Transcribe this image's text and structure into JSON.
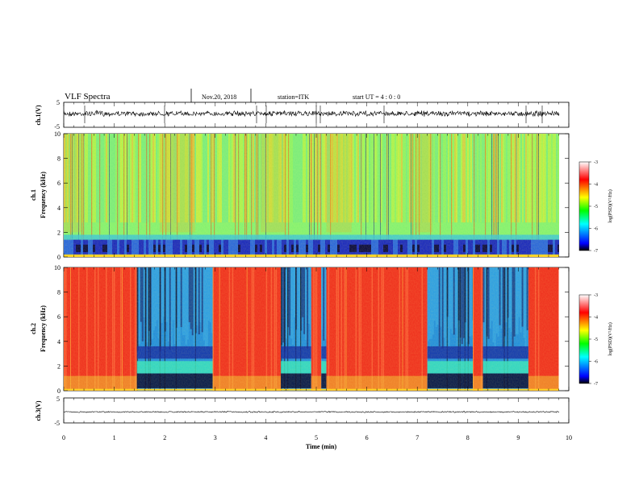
{
  "header": {
    "title": "VLF Spectra",
    "date": "Nov.20, 2018",
    "station": "station=ITK",
    "start_ut": "start  UT  =   4 : 0  : 0"
  },
  "colors": {
    "low": "#000000",
    "mid_low": "#0000ff",
    "mid": "#00ff80",
    "mid_high": "#ffff00",
    "high": "#ff0000",
    "top": "#ffffff"
  },
  "chart_data": [
    {
      "type": "line",
      "name": "ch1-waveform",
      "ylabel": "ch.1(V)",
      "ylim": [
        -5,
        5
      ],
      "y_ticks": [
        "5",
        "-5"
      ],
      "x": [
        0,
        10
      ],
      "baseline": 0.5,
      "amplitude": 0.6
    },
    {
      "type": "heatmap",
      "name": "ch1-spectrogram",
      "ylabel": "ch.1\nFrequency (kHz)",
      "xlim": [
        0,
        10
      ],
      "ylim": [
        0,
        10
      ],
      "y_ticks": [
        "0",
        "2",
        "4",
        "6",
        "8",
        "10"
      ],
      "colorbar": {
        "label": "log(PSD)(V²/Hz)",
        "range": [
          -7,
          -3
        ],
        "ticks": [
          "-3",
          "-4",
          "-5",
          "-6",
          "-7"
        ]
      },
      "quiet_band_khz": [
        0.2,
        1.4
      ],
      "background_level": -4.8,
      "bright_segments_min": [
        [
          0.0,
          0.35
        ],
        [
          1.9,
          2.6
        ],
        [
          3.9,
          4.4
        ],
        [
          5.2,
          5.7
        ],
        [
          7.0,
          7.3
        ]
      ]
    },
    {
      "type": "heatmap",
      "name": "ch2-spectrogram",
      "ylabel": "ch.2\nFrequency (kHz)",
      "xlim": [
        0,
        10
      ],
      "ylim": [
        0,
        10
      ],
      "y_ticks": [
        "0",
        "2",
        "4",
        "6",
        "8",
        "10"
      ],
      "colorbar": {
        "label": "log(PSD)(V²/Hz)",
        "range": [
          -7,
          -3
        ],
        "ticks": [
          "-3",
          "-4",
          "-5",
          "-6",
          "-7"
        ]
      },
      "segments_min": [
        {
          "start": 0.0,
          "end": 1.45,
          "level": "high"
        },
        {
          "start": 1.45,
          "end": 2.95,
          "level": "low"
        },
        {
          "start": 2.95,
          "end": 4.3,
          "level": "high"
        },
        {
          "start": 4.3,
          "end": 4.9,
          "level": "low"
        },
        {
          "start": 4.9,
          "end": 5.1,
          "level": "high"
        },
        {
          "start": 5.1,
          "end": 5.2,
          "level": "low"
        },
        {
          "start": 5.2,
          "end": 7.2,
          "level": "high"
        },
        {
          "start": 7.2,
          "end": 8.1,
          "level": "low"
        },
        {
          "start": 8.1,
          "end": 8.3,
          "level": "high"
        },
        {
          "start": 8.3,
          "end": 9.2,
          "level": "low"
        },
        {
          "start": 9.2,
          "end": 9.8,
          "level": "high"
        }
      ]
    },
    {
      "type": "line",
      "name": "ch3-waveform",
      "ylabel": "ch.3(V)",
      "xlabel": "Time (min)",
      "ylim": [
        -5,
        5
      ],
      "y_ticks": [
        "5",
        "-5"
      ],
      "x_ticks": [
        "0",
        "1",
        "2",
        "3",
        "4",
        "5",
        "6",
        "7",
        "8",
        "9",
        "10"
      ],
      "xlim": [
        0,
        10
      ],
      "baseline": -0.6,
      "amplitude": 0.15
    }
  ]
}
